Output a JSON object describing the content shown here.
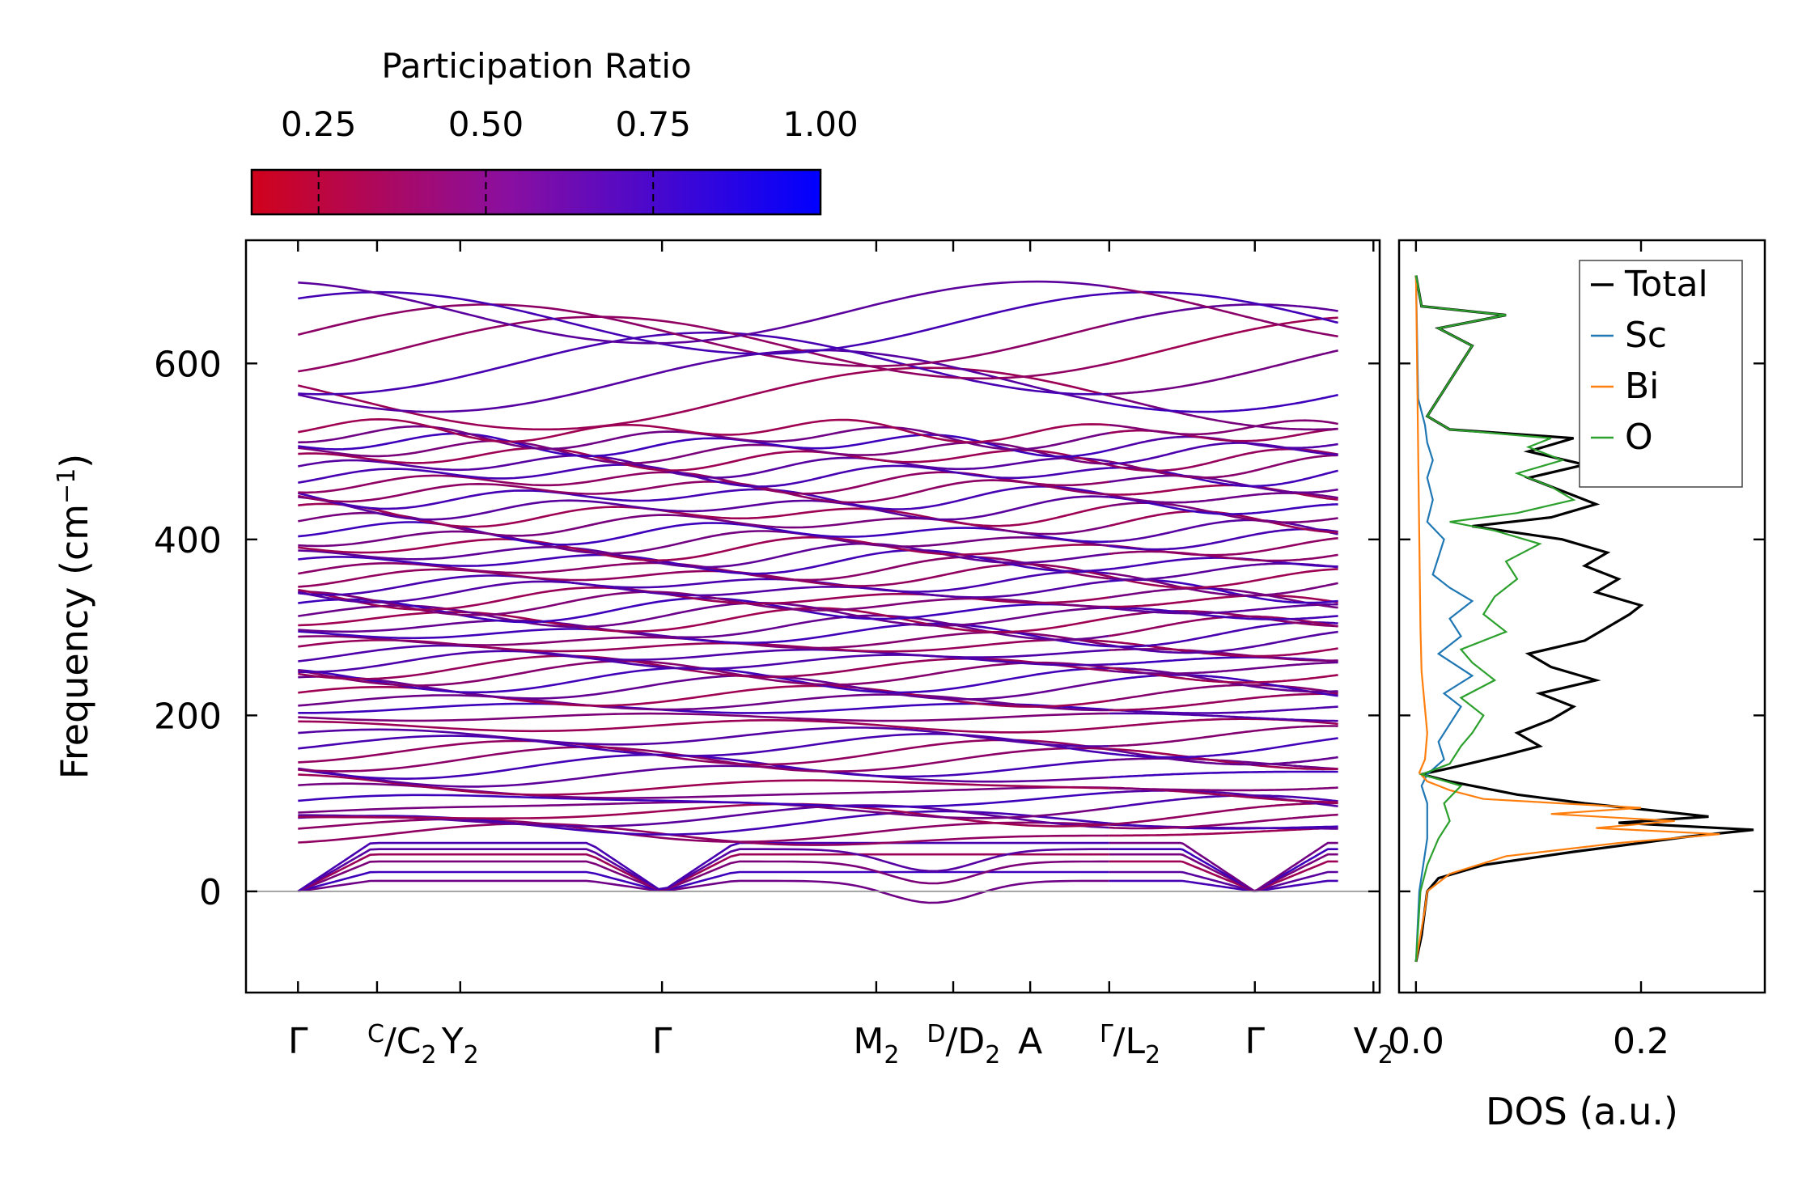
{
  "chart_data": [
    {
      "type": "line",
      "subtype": "phonon-band-structure",
      "ylabel": "Frequency (cm",
      "ylabel_sup": "−1",
      "ylabel_end": ")",
      "ylim": [
        -115,
        740
      ],
      "yticks": [
        0,
        200,
        400,
        600
      ],
      "zero_line": 0,
      "segments": [
        {
          "x_start": 0.0,
          "x_end": 3.9
        },
        {
          "x_start": 3.9,
          "x_end": 5.0
        }
      ],
      "xlim": [
        -0.25,
        5.2
      ],
      "high_symmetry_points": [
        {
          "x": 0.0,
          "label": "Γ"
        },
        {
          "x": 0.38,
          "label": ""
        },
        {
          "x": 0.78,
          "label": "Y2"
        },
        {
          "x": 1.75,
          "label": "Γ"
        },
        {
          "x": 2.78,
          "label": ""
        },
        {
          "x": 3.15,
          "label": ""
        },
        {
          "x": 3.52,
          "label": "A"
        },
        {
          "x": 3.9,
          "label": ""
        },
        {
          "x": 4.6,
          "label": "Γ"
        },
        {
          "x": 5.17,
          "label": "V2"
        }
      ],
      "xtick_labels": [
        {
          "id": "gamma1",
          "main": "Γ"
        },
        {
          "id": "c_c2",
          "sup": "C",
          "slash": "/",
          "main": "C",
          "sub": "2"
        },
        {
          "id": "y2",
          "main": "Y",
          "sub": "2"
        },
        {
          "id": "gamma2",
          "main": "Γ"
        },
        {
          "id": "m2",
          "main": "M",
          "sub": "2"
        },
        {
          "id": "d_d2",
          "sup": "D",
          "slash": "/",
          "main": "D",
          "sub": "2"
        },
        {
          "id": "a",
          "main": "A"
        },
        {
          "id": "gamma_l2",
          "sup": "Γ",
          "slash": "/",
          "main": "L",
          "sub": "2"
        },
        {
          "id": "gamma3",
          "main": "Γ"
        },
        {
          "id": "v2",
          "main": "V",
          "sub": "2"
        }
      ],
      "gamma_points": [
        0.0,
        1.75,
        4.6
      ],
      "bands_flat": [
        12,
        22,
        34,
        42,
        48,
        55,
        63,
        70,
        78,
        84,
        88,
        95,
        103,
        112,
        120,
        132,
        142,
        150,
        158,
        166,
        176,
        188,
        198,
        208,
        215,
        222,
        232,
        240,
        248,
        255,
        262,
        270,
        278,
        284,
        292,
        300,
        308,
        314,
        320,
        328,
        334,
        342,
        350,
        358,
        366,
        374,
        382,
        390,
        398,
        408,
        418,
        428,
        436,
        448,
        456,
        466,
        474,
        484,
        492,
        500,
        508,
        516,
        524
      ],
      "bands_high": [
        560,
        580,
        600,
        618,
        632,
        646,
        658
      ],
      "colorbar": {
        "title": "Participation Ratio",
        "min": 0.15,
        "max": 1.0,
        "ticks": [
          "0.25",
          "0.50",
          "0.75",
          "1.00"
        ],
        "tick_values": [
          0.25,
          0.5,
          0.75,
          1.0
        ],
        "color_low": "#d0021b",
        "color_high": "#0000ff"
      }
    },
    {
      "type": "line",
      "subtype": "density-of-states",
      "xlabel": "DOS (a.u.)",
      "xlim": [
        -0.015,
        0.31
      ],
      "xticks": [
        "0.0",
        "0.2"
      ],
      "xtick_values": [
        0.0,
        0.2
      ],
      "ylim": [
        -115,
        740
      ],
      "legend_position": "top-right",
      "series": [
        {
          "name": "Total",
          "color": "#000000",
          "points": [
            [
              -80,
              0.0
            ],
            [
              -50,
              0.005
            ],
            [
              -20,
              0.008
            ],
            [
              0,
              0.01
            ],
            [
              15,
              0.02
            ],
            [
              30,
              0.06
            ],
            [
              45,
              0.14
            ],
            [
              55,
              0.2
            ],
            [
              62,
              0.24
            ],
            [
              70,
              0.3
            ],
            [
              78,
              0.18
            ],
            [
              85,
              0.26
            ],
            [
              92,
              0.21
            ],
            [
              100,
              0.15
            ],
            [
              110,
              0.09
            ],
            [
              125,
              0.03
            ],
            [
              133,
              0.005
            ],
            [
              140,
              0.03
            ],
            [
              155,
              0.08
            ],
            [
              165,
              0.11
            ],
            [
              180,
              0.09
            ],
            [
              195,
              0.12
            ],
            [
              210,
              0.14
            ],
            [
              225,
              0.11
            ],
            [
              240,
              0.16
            ],
            [
              255,
              0.12
            ],
            [
              270,
              0.1
            ],
            [
              285,
              0.15
            ],
            [
              300,
              0.17
            ],
            [
              315,
              0.19
            ],
            [
              325,
              0.2
            ],
            [
              340,
              0.16
            ],
            [
              355,
              0.18
            ],
            [
              370,
              0.15
            ],
            [
              385,
              0.17
            ],
            [
              400,
              0.13
            ],
            [
              415,
              0.05
            ],
            [
              425,
              0.12
            ],
            [
              440,
              0.16
            ],
            [
              455,
              0.13
            ],
            [
              470,
              0.1
            ],
            [
              485,
              0.15
            ],
            [
              500,
              0.1
            ],
            [
              515,
              0.14
            ],
            [
              525,
              0.03
            ],
            [
              540,
              0.01
            ],
            [
              560,
              0.02
            ],
            [
              580,
              0.03
            ],
            [
              600,
              0.04
            ],
            [
              620,
              0.05
            ],
            [
              640,
              0.02
            ],
            [
              655,
              0.08
            ],
            [
              665,
              0.005
            ],
            [
              700,
              0.0
            ]
          ]
        },
        {
          "name": "Sc",
          "color": "#1f77b4",
          "points": [
            [
              -80,
              0.0
            ],
            [
              0,
              0.003
            ],
            [
              60,
              0.01
            ],
            [
              100,
              0.01
            ],
            [
              120,
              0.005
            ],
            [
              133,
              0.01
            ],
            [
              150,
              0.025
            ],
            [
              170,
              0.02
            ],
            [
              190,
              0.03
            ],
            [
              210,
              0.04
            ],
            [
              225,
              0.025
            ],
            [
              245,
              0.05
            ],
            [
              270,
              0.02
            ],
            [
              290,
              0.04
            ],
            [
              310,
              0.03
            ],
            [
              330,
              0.05
            ],
            [
              345,
              0.03
            ],
            [
              360,
              0.015
            ],
            [
              380,
              0.02
            ],
            [
              400,
              0.025
            ],
            [
              420,
              0.01
            ],
            [
              445,
              0.015
            ],
            [
              470,
              0.01
            ],
            [
              490,
              0.015
            ],
            [
              510,
              0.01
            ],
            [
              530,
              0.008
            ],
            [
              560,
              0.002
            ],
            [
              700,
              0.0
            ]
          ]
        },
        {
          "name": "Bi",
          "color": "#ff7f0e",
          "points": [
            [
              -80,
              0.0
            ],
            [
              -20,
              0.008
            ],
            [
              0,
              0.01
            ],
            [
              20,
              0.03
            ],
            [
              40,
              0.08
            ],
            [
              55,
              0.18
            ],
            [
              65,
              0.27
            ],
            [
              72,
              0.16
            ],
            [
              80,
              0.23
            ],
            [
              88,
              0.12
            ],
            [
              95,
              0.2
            ],
            [
              105,
              0.06
            ],
            [
              115,
              0.03
            ],
            [
              125,
              0.01
            ],
            [
              135,
              0.003
            ],
            [
              150,
              0.008
            ],
            [
              180,
              0.01
            ],
            [
              250,
              0.005
            ],
            [
              300,
              0.004
            ],
            [
              400,
              0.003
            ],
            [
              500,
              0.002
            ],
            [
              700,
              0.0
            ]
          ]
        },
        {
          "name": "O",
          "color": "#2ca02c",
          "points": [
            [
              -80,
              0.0
            ],
            [
              0,
              0.004
            ],
            [
              30,
              0.01
            ],
            [
              60,
              0.02
            ],
            [
              80,
              0.03
            ],
            [
              100,
              0.025
            ],
            [
              120,
              0.04
            ],
            [
              133,
              0.005
            ],
            [
              145,
              0.03
            ],
            [
              165,
              0.04
            ],
            [
              180,
              0.05
            ],
            [
              200,
              0.06
            ],
            [
              220,
              0.04
            ],
            [
              240,
              0.07
            ],
            [
              260,
              0.05
            ],
            [
              275,
              0.04
            ],
            [
              295,
              0.08
            ],
            [
              315,
              0.06
            ],
            [
              335,
              0.07
            ],
            [
              355,
              0.09
            ],
            [
              375,
              0.08
            ],
            [
              395,
              0.11
            ],
            [
              410,
              0.07
            ],
            [
              420,
              0.03
            ],
            [
              430,
              0.09
            ],
            [
              445,
              0.14
            ],
            [
              460,
              0.12
            ],
            [
              475,
              0.09
            ],
            [
              490,
              0.13
            ],
            [
              505,
              0.1
            ],
            [
              515,
              0.12
            ],
            [
              525,
              0.03
            ],
            [
              540,
              0.01
            ],
            [
              560,
              0.02
            ],
            [
              580,
              0.03
            ],
            [
              600,
              0.04
            ],
            [
              620,
              0.05
            ],
            [
              640,
              0.02
            ],
            [
              655,
              0.08
            ],
            [
              665,
              0.005
            ],
            [
              700,
              0.0
            ]
          ]
        }
      ]
    }
  ]
}
